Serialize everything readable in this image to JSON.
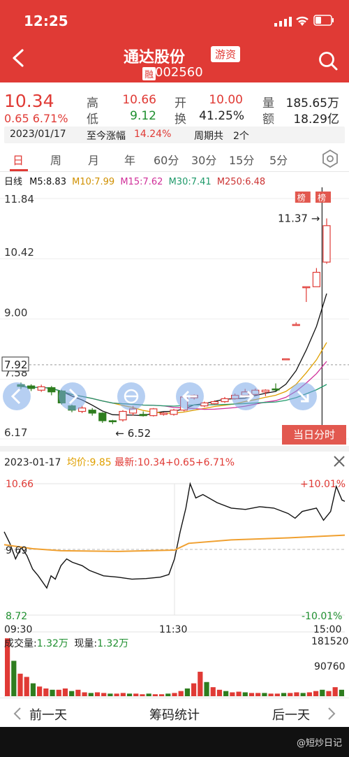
{
  "status": {
    "time": "12:25"
  },
  "header": {
    "name": "通达股份",
    "tag": "游资",
    "rong": "融",
    "code": "002560"
  },
  "quote": {
    "price": "10.34",
    "change": "0.65",
    "pct": "6.71%",
    "high_label": "高",
    "high": "10.66",
    "low_label": "低",
    "low": "9.12",
    "open_label": "开",
    "open": "10.00",
    "turnover_label": "换",
    "turnover": "41.25%",
    "volume_label": "量",
    "volume": "185.65万",
    "amount_label": "额",
    "amount": "18.29亿"
  },
  "info_bar": {
    "date": "2023/01/17",
    "gain_label": "至今涨幅",
    "gain": "14.24%",
    "period_label": "周期共",
    "period": "2个"
  },
  "tabs": [
    "日",
    "周",
    "月",
    "年",
    "60分",
    "30分",
    "15分",
    "5分"
  ],
  "ma_line": {
    "label": "日线",
    "m5": "M5:8.83",
    "m10": "M10:7.99",
    "m15": "M15:7.62",
    "m30": "M30:7.41",
    "m250": "M250:6.48",
    "colors": {
      "m5": "#111111",
      "m10": "#e0a000",
      "m15": "#d0309a",
      "m30": "#1f9a6a",
      "m250": "#cc3333"
    }
  },
  "kline": {
    "y_labels": [
      "11.84",
      "10.42",
      "9.00",
      "7.58",
      "6.17"
    ],
    "cur_price_box": "7.92",
    "max_label": "11.37",
    "min_label": "6.52",
    "bang_label": "榜",
    "bang_label2": "榜",
    "intraday_button": "当日分时",
    "candles": [
      {
        "o": 7.45,
        "c": 7.41,
        "h": 7.5,
        "l": 7.35
      },
      {
        "o": 7.42,
        "c": 7.36,
        "h": 7.46,
        "l": 7.3
      },
      {
        "o": 7.32,
        "c": 7.4,
        "h": 7.45,
        "l": 7.28
      },
      {
        "o": 7.38,
        "c": 7.28,
        "h": 7.42,
        "l": 7.2
      },
      {
        "o": 7.3,
        "c": 7.02,
        "h": 7.33,
        "l": 6.98
      },
      {
        "o": 6.95,
        "c": 6.85,
        "h": 6.98,
        "l": 6.8
      },
      {
        "o": 6.82,
        "c": 6.9,
        "h": 6.95,
        "l": 6.78
      },
      {
        "o": 6.85,
        "c": 6.78,
        "h": 6.9,
        "l": 6.72
      },
      {
        "o": 6.78,
        "c": 6.6,
        "h": 6.8,
        "l": 6.55
      },
      {
        "o": 6.6,
        "c": 6.58,
        "h": 6.62,
        "l": 6.52
      },
      {
        "o": 6.62,
        "c": 6.82,
        "h": 6.85,
        "l": 6.58
      },
      {
        "o": 6.78,
        "c": 6.88,
        "h": 6.95,
        "l": 6.72
      },
      {
        "o": 6.75,
        "c": 6.72,
        "h": 6.82,
        "l": 6.7
      },
      {
        "o": 6.72,
        "c": 6.88,
        "h": 6.9,
        "l": 6.7
      },
      {
        "o": 6.75,
        "c": 6.78,
        "h": 6.8,
        "l": 6.72
      },
      {
        "o": 6.75,
        "c": 6.85,
        "h": 6.88,
        "l": 6.72
      },
      {
        "o": 6.85,
        "c": 7.16,
        "h": 7.18,
        "l": 6.82
      },
      {
        "o": 7.14,
        "c": 7.2,
        "h": 7.22,
        "l": 7.1
      },
      {
        "o": 6.95,
        "c": 7.02,
        "h": 7.05,
        "l": 6.92
      },
      {
        "o": 7.0,
        "c": 7.05,
        "h": 7.08,
        "l": 6.98
      },
      {
        "o": 7.05,
        "c": 7.12,
        "h": 7.16,
        "l": 7.02
      },
      {
        "o": 7.12,
        "c": 7.2,
        "h": 7.24,
        "l": 7.1
      },
      {
        "o": 7.2,
        "c": 7.28,
        "h": 7.35,
        "l": 7.15
      },
      {
        "o": 7.22,
        "c": 7.32,
        "h": 7.36,
        "l": 7.2
      },
      {
        "o": 7.28,
        "c": 7.32,
        "h": 7.34,
        "l": 7.18
      },
      {
        "o": 7.35,
        "c": 7.33,
        "h": 7.48,
        "l": 7.3
      },
      {
        "o": 8.06,
        "c": 8.06,
        "h": 8.06,
        "l": 8.06
      },
      {
        "o": 8.87,
        "c": 8.87,
        "h": 8.92,
        "l": 8.85
      },
      {
        "o": 9.76,
        "c": 9.76,
        "h": 9.76,
        "l": 9.4
      },
      {
        "o": 9.76,
        "c": 10.1,
        "h": 10.2,
        "l": 9.76
      },
      {
        "o": 10.34,
        "c": 11.2,
        "h": 11.37,
        "l": 10.3
      }
    ]
  },
  "intraday": {
    "date": "2023-01-17",
    "avg_label": "均价:",
    "avg": "9.85",
    "last_label": "最新:",
    "last": "10.34+0.65+6.71%",
    "y_high": "10.66",
    "y_mid": "9.69",
    "y_low": "8.72",
    "pct_high": "+10.01%",
    "pct_low": "-10.01%",
    "t_start": "09:30",
    "t_mid": "11:30",
    "t_end": "15:00",
    "vol_label": "成交量:",
    "vol": "1.32万",
    "cur_label": "现量:",
    "cur": "1.32万",
    "vol_max": "181520",
    "vol_mid": "90760"
  },
  "bottom": {
    "prev": "前一天",
    "center": "筹码统计",
    "next": "后一天"
  },
  "watermark": "@短炒日记"
}
